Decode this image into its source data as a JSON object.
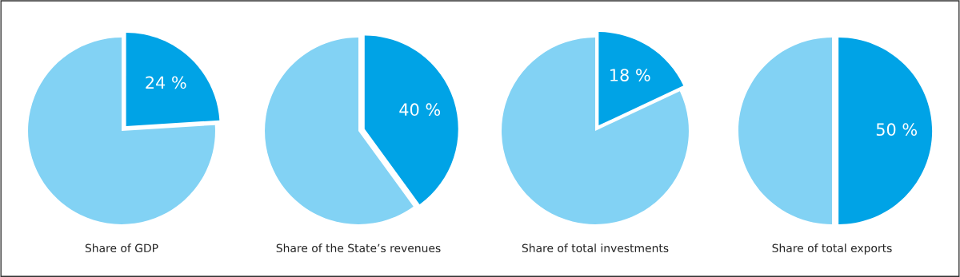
{
  "chart_data": [
    {
      "type": "pie",
      "title": "Share of GDP",
      "categories": [
        null,
        null
      ],
      "values": [
        24,
        76
      ],
      "colors": [
        "#00a3e6",
        "#82d2f4"
      ],
      "value_labels": [
        "24 %",
        null
      ]
    },
    {
      "type": "pie",
      "title": "Share of the State’s revenues",
      "categories": [
        null,
        null
      ],
      "values": [
        40,
        60
      ],
      "colors": [
        "#00a3e6",
        "#82d2f4"
      ],
      "value_labels": [
        "40 %",
        null
      ]
    },
    {
      "type": "pie",
      "title": "Share of total investments",
      "categories": [
        null,
        null
      ],
      "values": [
        18,
        82
      ],
      "colors": [
        "#00a3e6",
        "#82d2f4"
      ],
      "value_labels": [
        "18 %",
        null
      ]
    },
    {
      "type": "pie",
      "title": "Share of total exports",
      "categories": [
        null,
        null
      ],
      "values": [
        50,
        50
      ],
      "colors": [
        "#00a3e6",
        "#82d2f4"
      ],
      "value_labels": [
        "50 %",
        null
      ]
    }
  ]
}
